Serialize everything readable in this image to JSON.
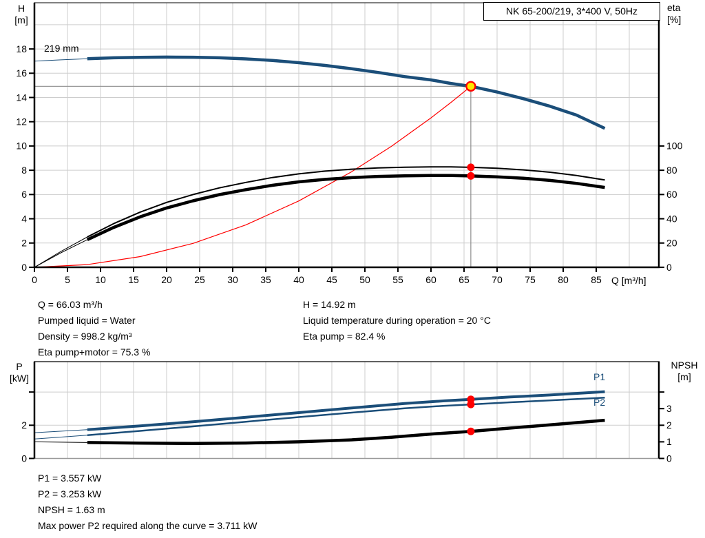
{
  "colors": {
    "blue": "#1b4e79",
    "red": "#ff0000",
    "black": "#000000",
    "yellow": "#ffe900",
    "grid": "#cdcdcd",
    "crosshair": "#8c8c8c",
    "axis": "#000000",
    "bottom_border_gray": "#999999",
    "text": "#000000"
  },
  "labels": {
    "title": "NK 65-200/219, 3*400 V, 50Hz",
    "h_axis_line1": "H",
    "h_axis_line2": "[m]",
    "eta_axis_line1": "eta",
    "eta_axis_line2": "[%]",
    "q_axis_unit": "Q [m³/h]",
    "impeller": "219 mm",
    "p_axis_line1": "P",
    "p_axis_line2": "[kW]",
    "npsh_axis_line1": "NPSH",
    "npsh_axis_line2": "[m]",
    "p1": "P1",
    "p2": "P2"
  },
  "info_top_left": [
    "Q = 66.03 m³/h",
    "Pumped liquid = Water",
    "Density = 998.2 kg/m³",
    "Eta pump+motor = 75.3 %"
  ],
  "info_top_right": [
    "H = 14.92 m",
    "Liquid temperature during operation = 20 °C",
    "Eta pump = 82.4 %"
  ],
  "info_bottom": [
    "P1 = 3.557 kW",
    "P2 = 3.253 kW",
    "NPSH = 1.63 m",
    "Max power P2 required along the curve = 3.711 kW"
  ],
  "chart_data": [
    {
      "id": "qh-eta-chart",
      "type": "line",
      "title": "NK 65-200/219, 3*400 V, 50Hz",
      "x_axis": {
        "label": "Q [m³/h]",
        "range": [
          0,
          94.48
        ],
        "ticks": [
          {
            "v": 0,
            "label": "0"
          },
          {
            "v": 5,
            "label": "5"
          },
          {
            "v": 10,
            "label": "10"
          },
          {
            "v": 15,
            "label": "15"
          },
          {
            "v": 20,
            "label": "20"
          },
          {
            "v": 25,
            "label": "25"
          },
          {
            "v": 30,
            "label": "30"
          },
          {
            "v": 35,
            "label": "35"
          },
          {
            "v": 40,
            "label": "40"
          },
          {
            "v": 45,
            "label": "45"
          },
          {
            "v": 50,
            "label": "50"
          },
          {
            "v": 55,
            "label": "55"
          },
          {
            "v": 60,
            "label": "60"
          },
          {
            "v": 65,
            "label": "65"
          },
          {
            "v": 70,
            "label": "70"
          },
          {
            "v": 75,
            "label": "75"
          },
          {
            "v": 80,
            "label": "80"
          },
          {
            "v": 85,
            "label": "85"
          }
        ],
        "gridlines": [
          5,
          10,
          15,
          20,
          25,
          30,
          35,
          40,
          45,
          50,
          55,
          60,
          65,
          70,
          75,
          80,
          85,
          90
        ]
      },
      "y_left": {
        "label": "H [m]",
        "range": [
          0,
          21.81
        ],
        "ticks": [
          {
            "v": 0,
            "label": "0"
          },
          {
            "v": 2,
            "label": "2"
          },
          {
            "v": 4,
            "label": "4"
          },
          {
            "v": 6,
            "label": "6"
          },
          {
            "v": 8,
            "label": "8"
          },
          {
            "v": 10,
            "label": "10"
          },
          {
            "v": 12,
            "label": "12"
          },
          {
            "v": 14,
            "label": "14"
          },
          {
            "v": 16,
            "label": "16"
          },
          {
            "v": 18,
            "label": "18"
          }
        ],
        "gridlines": [
          2,
          4,
          6,
          8,
          10,
          12,
          14,
          16,
          18,
          20
        ]
      },
      "y_right": {
        "label": "eta [%]",
        "left_units_per_right_unit": 0.1,
        "ticks": [
          {
            "v": 0,
            "label": "0"
          },
          {
            "v": 20,
            "label": "20"
          },
          {
            "v": 40,
            "label": "40"
          },
          {
            "v": 60,
            "label": "60"
          },
          {
            "v": 80,
            "label": "80"
          },
          {
            "v": 100,
            "label": "100"
          }
        ]
      },
      "curves": [
        {
          "name": "system-curve",
          "color": "red",
          "axis": "left",
          "width": 1.2,
          "thin_until": null,
          "points": [
            [
              0,
              0
            ],
            [
              8,
              0.22
            ],
            [
              16,
              0.88
            ],
            [
              24,
              1.97
            ],
            [
              32,
              3.5
            ],
            [
              40,
              5.47
            ],
            [
              48,
              7.88
            ],
            [
              54,
              9.97
            ],
            [
              60,
              12.32
            ],
            [
              63,
              13.58
            ],
            [
              66.03,
              14.92
            ]
          ]
        },
        {
          "name": "eta-pump-curve",
          "color": "black",
          "axis": "right",
          "width": 2,
          "thin_until": 8,
          "points": [
            [
              0,
              0
            ],
            [
              4,
              13
            ],
            [
              8,
              25
            ],
            [
              12,
              36
            ],
            [
              16,
              45.5
            ],
            [
              20,
              53.5
            ],
            [
              24,
              60
            ],
            [
              28,
              65.5
            ],
            [
              32,
              70
            ],
            [
              36,
              74
            ],
            [
              40,
              77
            ],
            [
              44,
              79.3
            ],
            [
              48,
              80.9
            ],
            [
              52,
              81.9
            ],
            [
              56,
              82.5
            ],
            [
              60,
              82.8
            ],
            [
              63,
              82.8
            ],
            [
              66.03,
              82.4
            ],
            [
              70,
              81.6
            ],
            [
              74,
              80.3
            ],
            [
              78,
              78.4
            ],
            [
              82,
              75.7
            ],
            [
              86.3,
              72
            ]
          ]
        },
        {
          "name": "eta-pump-motor-curve",
          "color": "black",
          "axis": "right",
          "width": 4.5,
          "thin_until": 8,
          "points": [
            [
              0,
              0
            ],
            [
              4,
              11.9
            ],
            [
              8,
              22.8
            ],
            [
              12,
              32.9
            ],
            [
              16,
              41.6
            ],
            [
              20,
              48.9
            ],
            [
              24,
              54.8
            ],
            [
              28,
              59.9
            ],
            [
              32,
              64
            ],
            [
              36,
              67.6
            ],
            [
              40,
              70.4
            ],
            [
              44,
              72.5
            ],
            [
              48,
              73.9
            ],
            [
              52,
              74.9
            ],
            [
              56,
              75.4
            ],
            [
              60,
              75.7
            ],
            [
              63,
              75.7
            ],
            [
              66.03,
              75.3
            ],
            [
              70,
              74.6
            ],
            [
              74,
              73.4
            ],
            [
              78,
              71.6
            ],
            [
              82,
              69.2
            ],
            [
              86.3,
              65.8
            ]
          ]
        },
        {
          "name": "qh-curve",
          "label": "219 mm",
          "color": "blue",
          "axis": "left",
          "width": 4.5,
          "thin_until": 8,
          "points": [
            [
              0,
              17.0
            ],
            [
              4,
              17.1
            ],
            [
              8,
              17.2
            ],
            [
              12,
              17.27
            ],
            [
              16,
              17.31
            ],
            [
              20,
              17.33
            ],
            [
              24,
              17.32
            ],
            [
              28,
              17.27
            ],
            [
              32,
              17.18
            ],
            [
              36,
              17.05
            ],
            [
              40,
              16.87
            ],
            [
              44,
              16.64
            ],
            [
              48,
              16.37
            ],
            [
              52,
              16.06
            ],
            [
              56,
              15.72
            ],
            [
              60,
              15.45
            ],
            [
              63,
              15.16
            ],
            [
              66.03,
              14.92
            ],
            [
              70,
              14.45
            ],
            [
              74,
              13.9
            ],
            [
              78,
              13.28
            ],
            [
              82,
              12.55
            ],
            [
              86.3,
              11.45
            ]
          ]
        }
      ],
      "crosshair": {
        "q": 66.03,
        "h": 14.92
      },
      "markers": [
        {
          "name": "eta-pump-point",
          "q": 66.03,
          "value": 82.4,
          "axis": "right",
          "style": "dot"
        },
        {
          "name": "eta-pump-motor-point",
          "q": 66.03,
          "value": 75.3,
          "axis": "right",
          "style": "dot"
        },
        {
          "name": "duty-point",
          "q": 66.03,
          "value": 14.92,
          "axis": "left",
          "style": "duty"
        }
      ]
    },
    {
      "id": "power-npsh-chart",
      "type": "line",
      "x_axis": {
        "label": "",
        "range": [
          0,
          94.48
        ],
        "ticks": [],
        "gridlines": [
          5,
          10,
          15,
          20,
          25,
          30,
          35,
          40,
          45,
          50,
          55,
          60,
          65,
          70,
          75,
          80,
          85,
          90
        ]
      },
      "y_left": {
        "label": "P [kW]",
        "range": [
          0,
          5.83
        ],
        "ticks": [
          {
            "v": 0,
            "label": "0"
          },
          {
            "v": 2,
            "label": "2"
          },
          {
            "v": 4,
            "label": ""
          }
        ],
        "gridlines": [
          2,
          4
        ]
      },
      "y_right": {
        "label": "NPSH [m]",
        "left_units_per_right_unit": 1,
        "ticks": [
          {
            "v": 0,
            "label": "0"
          },
          {
            "v": 1,
            "label": "1"
          },
          {
            "v": 2,
            "label": "2"
          },
          {
            "v": 3,
            "label": "3"
          },
          {
            "v": 4,
            "label": ""
          }
        ]
      },
      "curves": [
        {
          "name": "npsh-curve",
          "color": "black",
          "axis": "right",
          "width": 4.5,
          "thin_until": 8,
          "points": [
            [
              0,
              1.0
            ],
            [
              8,
              0.96
            ],
            [
              16,
              0.92
            ],
            [
              24,
              0.9
            ],
            [
              32,
              0.93
            ],
            [
              40,
              1.0
            ],
            [
              48,
              1.12
            ],
            [
              54,
              1.28
            ],
            [
              60,
              1.47
            ],
            [
              66.03,
              1.63
            ],
            [
              72,
              1.83
            ],
            [
              78,
              2.02
            ],
            [
              86.3,
              2.3
            ]
          ]
        },
        {
          "name": "p2-curve",
          "label": "P2",
          "color": "blue",
          "axis": "left",
          "width": 2.5,
          "thin_until": 8,
          "points": [
            [
              0,
              1.17
            ],
            [
              8,
              1.4
            ],
            [
              16,
              1.66
            ],
            [
              24,
              1.93
            ],
            [
              32,
              2.21
            ],
            [
              40,
              2.49
            ],
            [
              48,
              2.76
            ],
            [
              56,
              3.02
            ],
            [
              62,
              3.17
            ],
            [
              66.03,
              3.253
            ],
            [
              72,
              3.38
            ],
            [
              78,
              3.5
            ],
            [
              86.3,
              3.66
            ]
          ]
        },
        {
          "name": "p1-curve",
          "label": "P1",
          "color": "blue",
          "axis": "left",
          "width": 4,
          "thin_until": 8,
          "points": [
            [
              0,
              1.55
            ],
            [
              8,
              1.73
            ],
            [
              16,
              1.96
            ],
            [
              24,
              2.21
            ],
            [
              32,
              2.48
            ],
            [
              40,
              2.76
            ],
            [
              48,
              3.04
            ],
            [
              56,
              3.31
            ],
            [
              62,
              3.47
            ],
            [
              66.03,
              3.557
            ],
            [
              72,
              3.7
            ],
            [
              78,
              3.82
            ],
            [
              86.3,
              4.02
            ]
          ]
        }
      ],
      "crosshair": null,
      "markers": [
        {
          "name": "p1-point",
          "q": 66.03,
          "value": 3.557,
          "axis": "left",
          "style": "dot"
        },
        {
          "name": "p2-point",
          "q": 66.03,
          "value": 3.253,
          "axis": "left",
          "style": "dot"
        },
        {
          "name": "npsh-point",
          "q": 66.03,
          "value": 1.63,
          "axis": "right",
          "style": "dot"
        }
      ]
    }
  ]
}
